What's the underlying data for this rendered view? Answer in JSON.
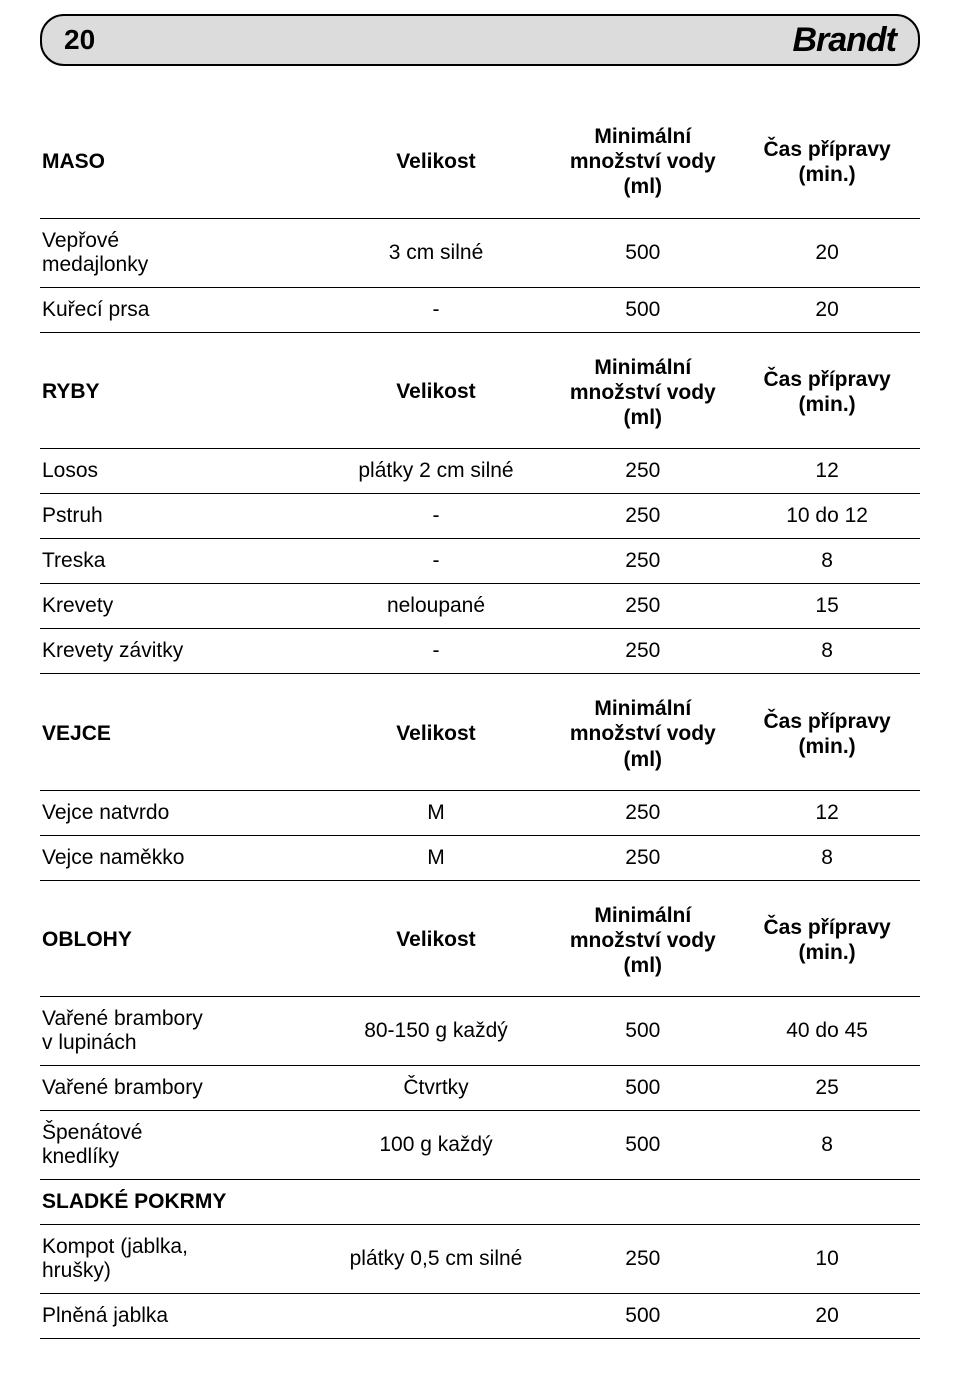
{
  "page_number": "20",
  "brand": "Brandt",
  "col_size_label": "Velikost",
  "col_qty_label_line1": "Minimální",
  "col_qty_label_line2": "množství vody",
  "col_qty_label_line3": "(ml)",
  "col_time_label_line1": "Čas přípravy",
  "col_time_label_line2": "(min.)",
  "sections": {
    "maso": {
      "title": "MASO",
      "rows": [
        {
          "name_l1": "Vepřové",
          "name_l2": "medajlonky",
          "size": "3 cm silné",
          "qty": "500",
          "time": "20"
        },
        {
          "name_l1": "Kuřecí prsa",
          "size": "-",
          "qty": "500",
          "time": "20"
        }
      ]
    },
    "ryby": {
      "title": "RYBY",
      "rows": [
        {
          "name_l1": "Losos",
          "size": "plátky 2 cm silné",
          "qty": "250",
          "time": "12"
        },
        {
          "name_l1": "Pstruh",
          "size": "-",
          "qty": "250",
          "time": "10 do 12"
        },
        {
          "name_l1": "Treska",
          "size": "-",
          "qty": "250",
          "time": "8"
        },
        {
          "name_l1": "Krevety",
          "size": "neloupané",
          "qty": "250",
          "time": "15"
        },
        {
          "name_l1": "Krevety závitky",
          "size": "-",
          "qty": "250",
          "time": "8"
        }
      ]
    },
    "vejce": {
      "title": "VEJCE",
      "rows": [
        {
          "name_l1": "Vejce natvrdo",
          "size": "M",
          "qty": "250",
          "time": "12"
        },
        {
          "name_l1": "Vejce naměkko",
          "size": "M",
          "qty": "250",
          "time": "8"
        }
      ]
    },
    "oblohy": {
      "title": "OBLOHY",
      "rows": [
        {
          "name_l1": "Vařené brambory",
          "name_l2": "v lupinách",
          "size": "80-150 g každý",
          "qty": "500",
          "time": "40 do 45"
        },
        {
          "name_l1": "Vařené brambory",
          "size": "Čtvrtky",
          "qty": "500",
          "time": "25"
        },
        {
          "name_l1": "Špenátové",
          "name_l2": "knedlíky",
          "size": "100 g každý",
          "qty": "500",
          "time": "8"
        }
      ]
    },
    "sladke": {
      "title": "SLADKÉ POKRMY",
      "rows": [
        {
          "name_l1": "Kompot (jablka,",
          "name_l2": "hrušky)",
          "size": "plátky 0,5 cm silné",
          "qty": "250",
          "time": "10"
        },
        {
          "name_l1": "Plněná jablka",
          "size": "",
          "qty": "500",
          "time": "20"
        }
      ]
    }
  }
}
